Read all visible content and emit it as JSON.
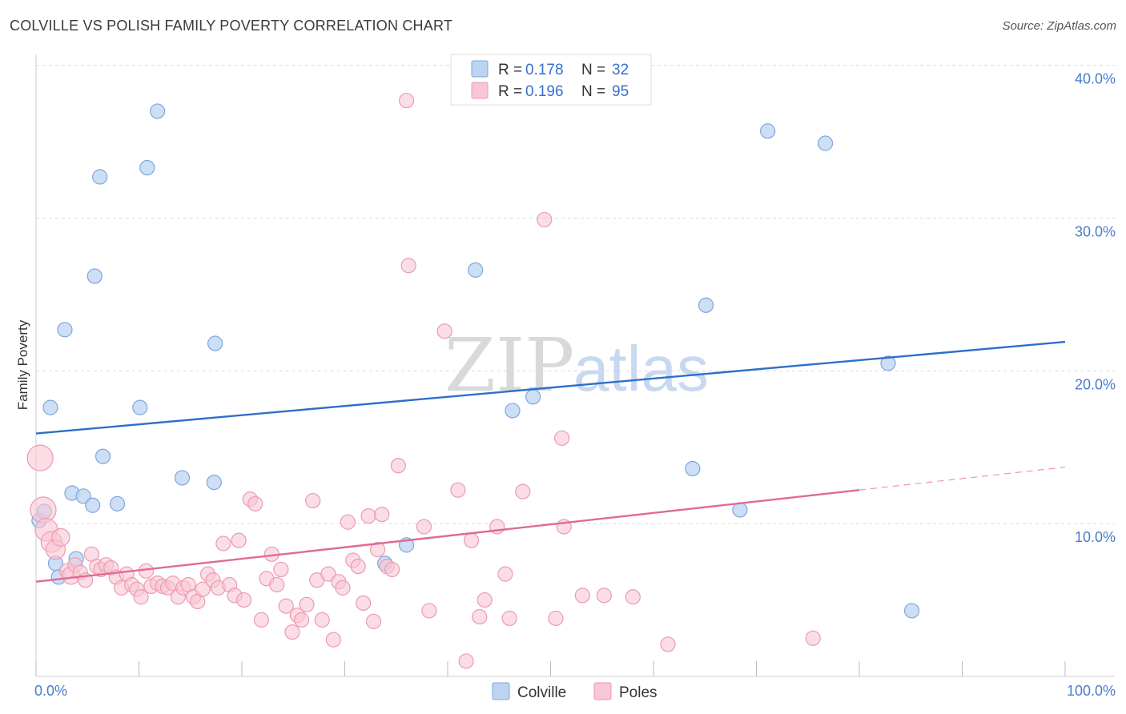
{
  "header": {
    "title": "COLVILLE VS POLISH FAMILY POVERTY CORRELATION CHART",
    "source": "Source: ZipAtlas.com"
  },
  "watermark": {
    "zip": "ZIP",
    "atlas": "atlas"
  },
  "chart_data": {
    "type": "scatter",
    "ylabel": "Family Poverty",
    "xlim": [
      0,
      100
    ],
    "ylim": [
      0,
      40
    ],
    "x_ticks": [
      "0.0%",
      "100.0%"
    ],
    "y_ticks": [
      {
        "value": 10,
        "label": "10.0%"
      },
      {
        "value": 20,
        "label": "20.0%"
      },
      {
        "value": 30,
        "label": "30.0%"
      },
      {
        "value": 40,
        "label": "40.0%"
      }
    ],
    "grid": true,
    "legend_top": [
      {
        "r_label": "R =",
        "r": "0.178",
        "n_label": "N =",
        "n": "32",
        "color": "#a9c8ee"
      },
      {
        "r_label": "R =",
        "r": "0.196",
        "n_label": "N =",
        "n": "95",
        "color": "#f5b8c9"
      }
    ],
    "legend_bottom": [
      "Colville",
      "Poles"
    ],
    "series": [
      {
        "name": "Colville",
        "fill": "#bcd4f2",
        "stroke": "#7ea6dc",
        "line_color": "#2e6fca",
        "trend": {
          "x0": 0,
          "y0": 15.9,
          "x1": 100,
          "y1": 21.9
        },
        "points": [
          {
            "x": 0.3,
            "y": 10.2,
            "r": 9
          },
          {
            "x": 0.8,
            "y": 10.8
          },
          {
            "x": 1.4,
            "y": 17.6
          },
          {
            "x": 1.9,
            "y": 7.4
          },
          {
            "x": 2.2,
            "y": 6.5
          },
          {
            "x": 2.8,
            "y": 22.7
          },
          {
            "x": 3.5,
            "y": 12.0
          },
          {
            "x": 3.9,
            "y": 7.7
          },
          {
            "x": 4.6,
            "y": 11.8
          },
          {
            "x": 5.5,
            "y": 11.2
          },
          {
            "x": 5.7,
            "y": 26.2
          },
          {
            "x": 6.2,
            "y": 32.7
          },
          {
            "x": 6.5,
            "y": 14.4
          },
          {
            "x": 7.9,
            "y": 11.3
          },
          {
            "x": 10.1,
            "y": 17.6
          },
          {
            "x": 10.8,
            "y": 33.3
          },
          {
            "x": 11.8,
            "y": 37.0
          },
          {
            "x": 14.2,
            "y": 13.0
          },
          {
            "x": 17.3,
            "y": 12.7
          },
          {
            "x": 17.4,
            "y": 21.8
          },
          {
            "x": 33.9,
            "y": 7.4
          },
          {
            "x": 36.0,
            "y": 8.6
          },
          {
            "x": 42.7,
            "y": 26.6
          },
          {
            "x": 46.3,
            "y": 17.4
          },
          {
            "x": 48.3,
            "y": 18.3
          },
          {
            "x": 63.8,
            "y": 13.6
          },
          {
            "x": 65.1,
            "y": 24.3
          },
          {
            "x": 68.4,
            "y": 10.9
          },
          {
            "x": 71.1,
            "y": 35.7
          },
          {
            "x": 76.7,
            "y": 34.9
          },
          {
            "x": 82.8,
            "y": 20.5
          },
          {
            "x": 85.1,
            "y": 4.3
          }
        ]
      },
      {
        "name": "Poles",
        "fill": "#f8c6d4",
        "stroke": "#ec9ab2",
        "line_color": "#e06a93",
        "trend": {
          "x0": 0,
          "y0": 6.2,
          "x1": 80,
          "y1": 12.2
        },
        "trend_dashed": {
          "x0": 80,
          "y0": 12.2,
          "x1": 100,
          "y1": 13.7
        },
        "points": [
          {
            "x": 0.4,
            "y": 14.3,
            "r": 16
          },
          {
            "x": 0.7,
            "y": 10.9,
            "r": 16
          },
          {
            "x": 1.0,
            "y": 9.6,
            "r": 14
          },
          {
            "x": 1.5,
            "y": 8.8,
            "r": 13
          },
          {
            "x": 1.9,
            "y": 8.3,
            "r": 12
          },
          {
            "x": 2.4,
            "y": 9.1,
            "r": 11
          },
          {
            "x": 3.0,
            "y": 6.9
          },
          {
            "x": 3.4,
            "y": 6.6,
            "r": 11
          },
          {
            "x": 3.8,
            "y": 7.3
          },
          {
            "x": 4.3,
            "y": 6.8
          },
          {
            "x": 4.8,
            "y": 6.3
          },
          {
            "x": 5.4,
            "y": 8.0
          },
          {
            "x": 5.9,
            "y": 7.2
          },
          {
            "x": 6.3,
            "y": 7.0
          },
          {
            "x": 6.8,
            "y": 7.3
          },
          {
            "x": 7.3,
            "y": 7.1
          },
          {
            "x": 7.8,
            "y": 6.5
          },
          {
            "x": 8.3,
            "y": 5.8
          },
          {
            "x": 8.8,
            "y": 6.7
          },
          {
            "x": 9.3,
            "y": 6.0
          },
          {
            "x": 9.8,
            "y": 5.7
          },
          {
            "x": 10.2,
            "y": 5.2
          },
          {
            "x": 10.7,
            "y": 6.9
          },
          {
            "x": 11.2,
            "y": 5.9
          },
          {
            "x": 11.8,
            "y": 6.1
          },
          {
            "x": 12.3,
            "y": 5.9
          },
          {
            "x": 12.8,
            "y": 5.8
          },
          {
            "x": 13.3,
            "y": 6.1
          },
          {
            "x": 13.8,
            "y": 5.2
          },
          {
            "x": 14.3,
            "y": 5.8
          },
          {
            "x": 14.8,
            "y": 6.0
          },
          {
            "x": 15.3,
            "y": 5.2
          },
          {
            "x": 15.7,
            "y": 4.9
          },
          {
            "x": 16.2,
            "y": 5.7
          },
          {
            "x": 16.7,
            "y": 6.7
          },
          {
            "x": 17.2,
            "y": 6.3
          },
          {
            "x": 17.7,
            "y": 5.8
          },
          {
            "x": 18.2,
            "y": 8.7
          },
          {
            "x": 18.8,
            "y": 6.0
          },
          {
            "x": 19.3,
            "y": 5.3
          },
          {
            "x": 19.7,
            "y": 8.9
          },
          {
            "x": 20.2,
            "y": 5.0
          },
          {
            "x": 20.8,
            "y": 11.6
          },
          {
            "x": 21.3,
            "y": 11.3
          },
          {
            "x": 21.9,
            "y": 3.7
          },
          {
            "x": 22.4,
            "y": 6.4
          },
          {
            "x": 22.9,
            "y": 8.0
          },
          {
            "x": 23.4,
            "y": 6.0
          },
          {
            "x": 23.8,
            "y": 7.0
          },
          {
            "x": 24.3,
            "y": 4.6
          },
          {
            "x": 24.9,
            "y": 2.9
          },
          {
            "x": 25.4,
            "y": 4.0
          },
          {
            "x": 25.8,
            "y": 3.7
          },
          {
            "x": 26.3,
            "y": 4.7
          },
          {
            "x": 26.9,
            "y": 11.5
          },
          {
            "x": 27.3,
            "y": 6.3
          },
          {
            "x": 27.8,
            "y": 3.7
          },
          {
            "x": 28.4,
            "y": 6.7
          },
          {
            "x": 28.9,
            "y": 2.4
          },
          {
            "x": 29.4,
            "y": 6.2
          },
          {
            "x": 29.8,
            "y": 5.8
          },
          {
            "x": 30.3,
            "y": 10.1
          },
          {
            "x": 30.8,
            "y": 7.6
          },
          {
            "x": 31.3,
            "y": 7.2
          },
          {
            "x": 31.8,
            "y": 4.8
          },
          {
            "x": 32.3,
            "y": 10.5
          },
          {
            "x": 32.8,
            "y": 3.6
          },
          {
            "x": 33.2,
            "y": 8.3
          },
          {
            "x": 33.6,
            "y": 10.6
          },
          {
            "x": 34.1,
            "y": 7.2
          },
          {
            "x": 34.6,
            "y": 7.0
          },
          {
            "x": 35.2,
            "y": 13.8
          },
          {
            "x": 36.0,
            "y": 37.7
          },
          {
            "x": 36.2,
            "y": 26.9
          },
          {
            "x": 37.7,
            "y": 9.8
          },
          {
            "x": 38.2,
            "y": 4.3
          },
          {
            "x": 39.7,
            "y": 22.6
          },
          {
            "x": 41.0,
            "y": 12.2
          },
          {
            "x": 41.8,
            "y": 1.0
          },
          {
            "x": 42.3,
            "y": 8.9
          },
          {
            "x": 43.1,
            "y": 3.9
          },
          {
            "x": 43.6,
            "y": 5.0
          },
          {
            "x": 44.8,
            "y": 9.8
          },
          {
            "x": 45.6,
            "y": 6.7
          },
          {
            "x": 46.0,
            "y": 3.8
          },
          {
            "x": 47.3,
            "y": 12.1
          },
          {
            "x": 49.4,
            "y": 29.9
          },
          {
            "x": 50.5,
            "y": 3.8
          },
          {
            "x": 51.1,
            "y": 15.6
          },
          {
            "x": 51.3,
            "y": 9.8
          },
          {
            "x": 53.1,
            "y": 5.3
          },
          {
            "x": 55.2,
            "y": 5.3
          },
          {
            "x": 58.0,
            "y": 5.2
          },
          {
            "x": 61.4,
            "y": 2.1
          },
          {
            "x": 75.5,
            "y": 2.5
          }
        ]
      }
    ]
  }
}
